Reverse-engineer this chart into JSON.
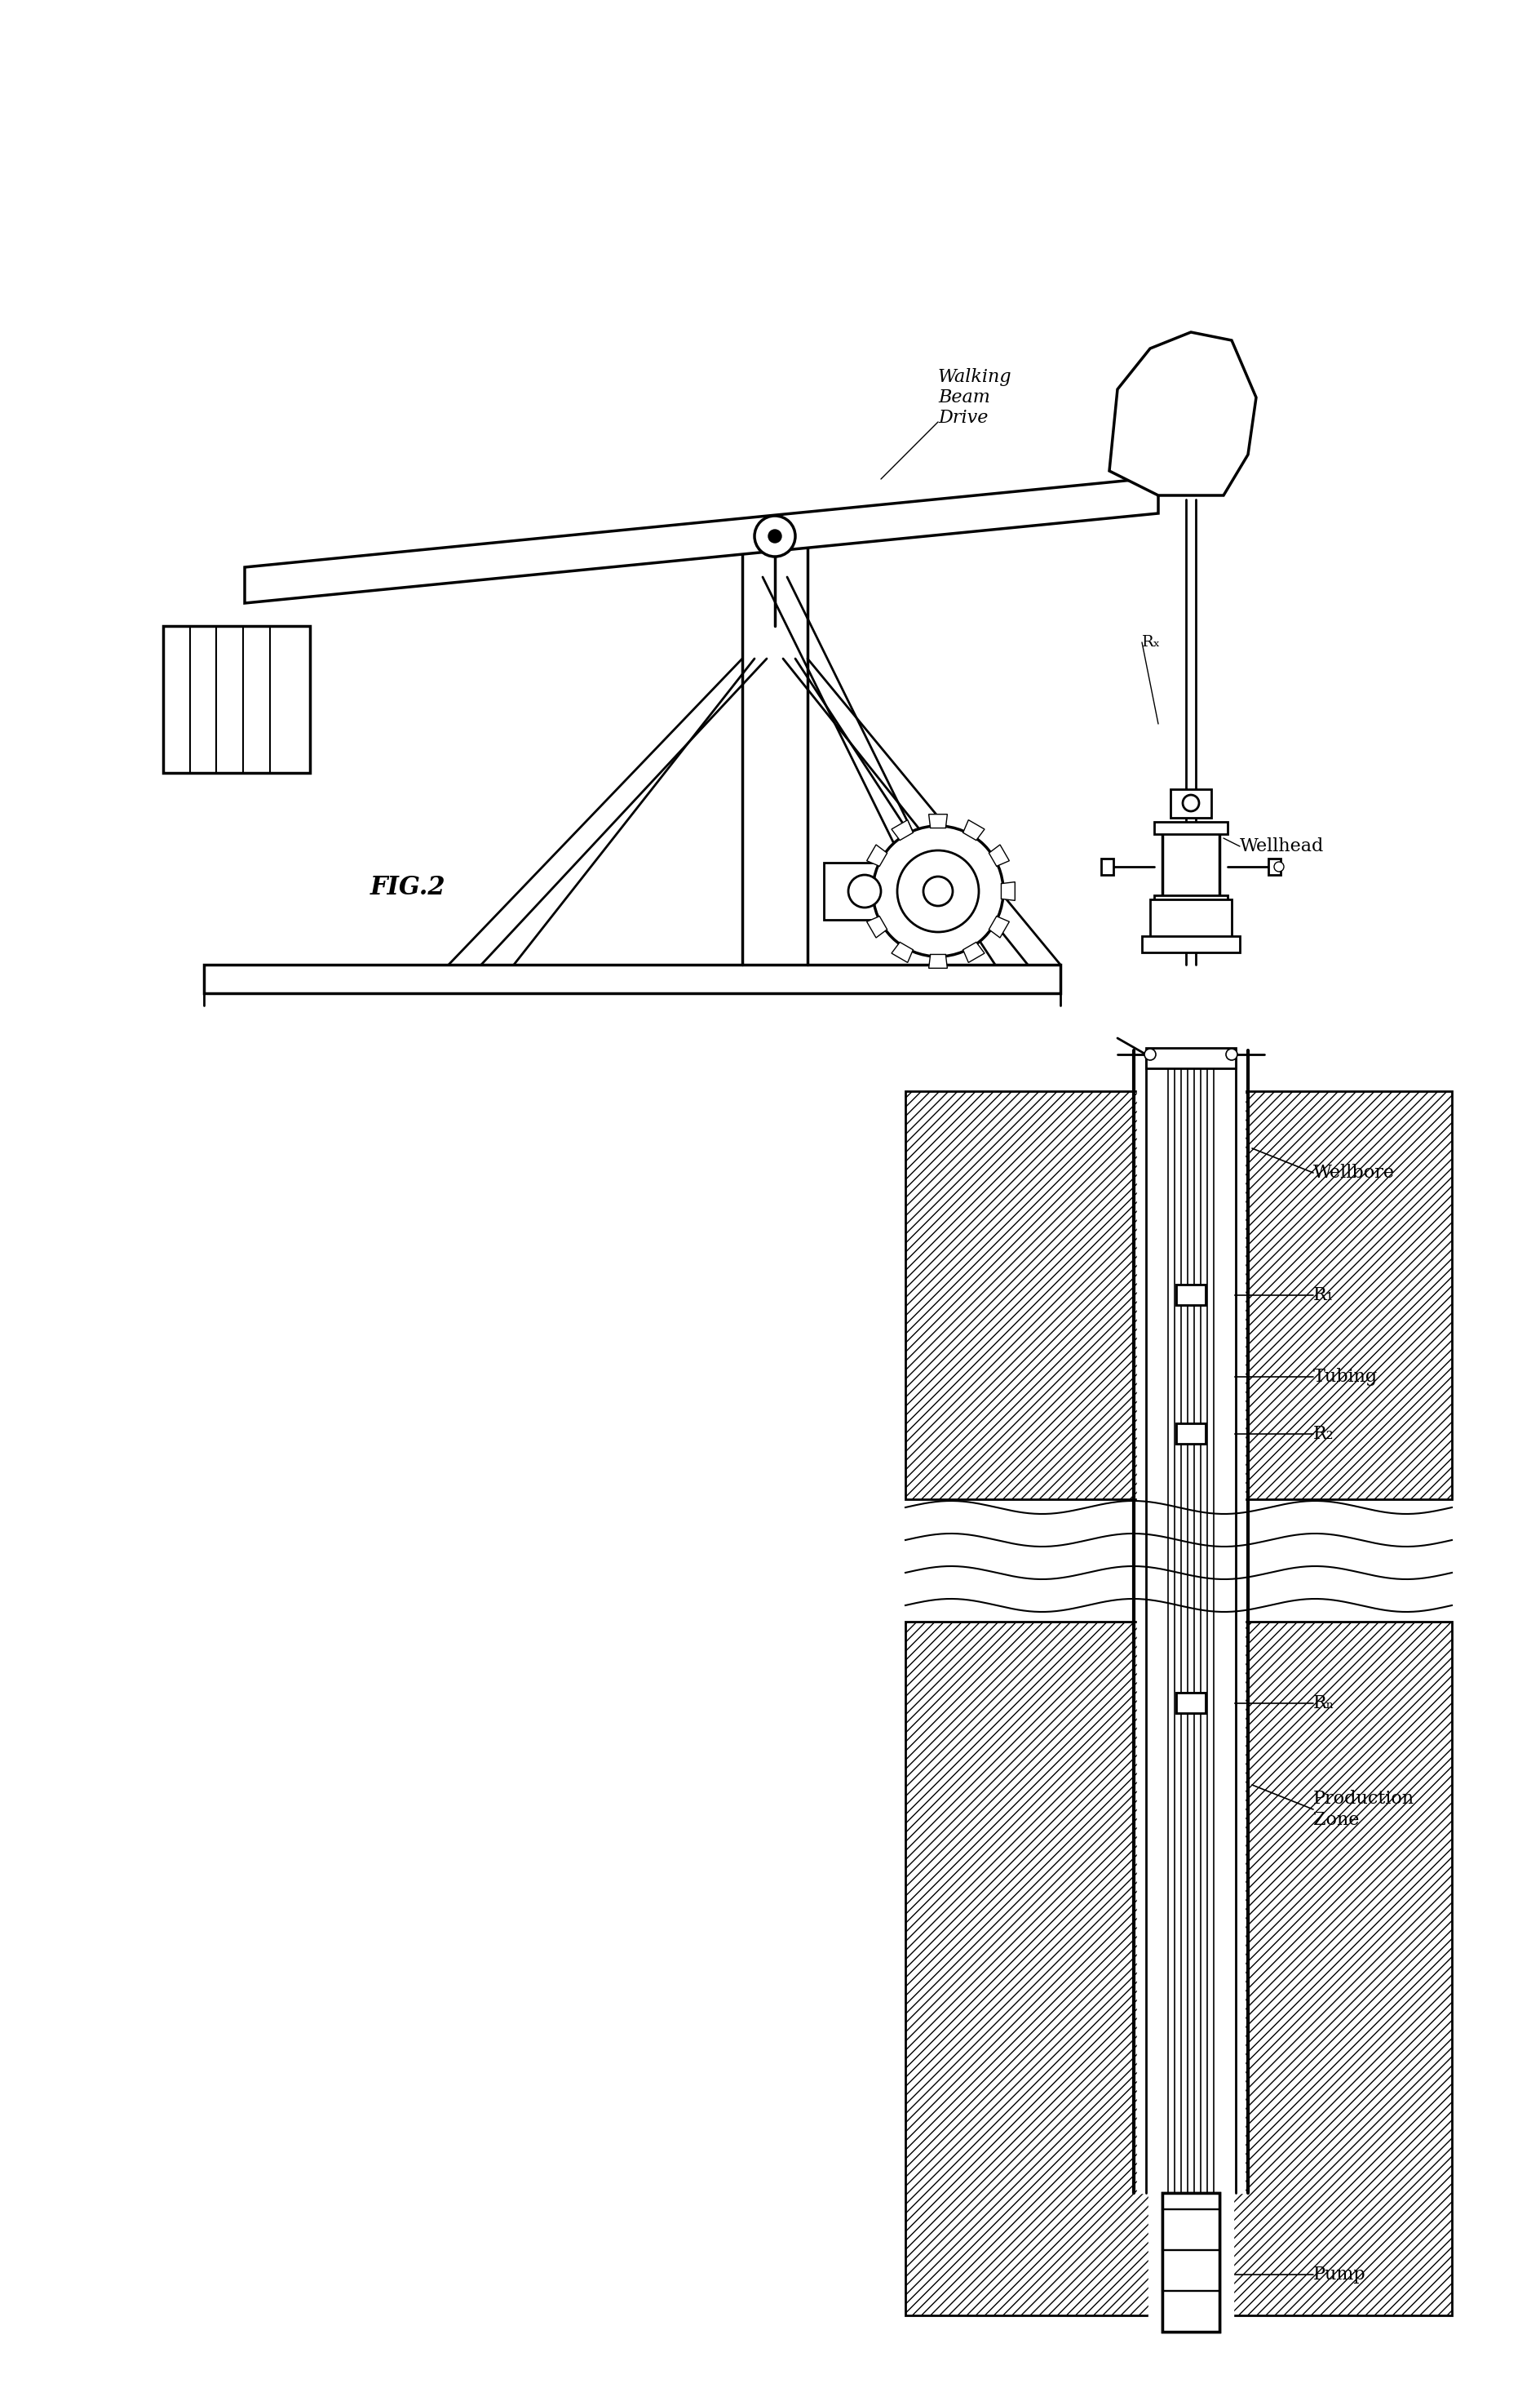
{
  "bg_color": "#ffffff",
  "line_color": "#000000",
  "lw": 2.0,
  "fig_label": "FIG.2",
  "labels": {
    "walking_beam": "Walking\nBeam\nDrive",
    "wellhead": "Wellhead",
    "wellbore": "Wellbore",
    "R1": "R₁",
    "R2": "R₂",
    "Rn": "Rₙ",
    "Rx": "Rₓ",
    "tubing": "Tubing",
    "production_zone": "Production\nZone",
    "pump": "Pump"
  }
}
